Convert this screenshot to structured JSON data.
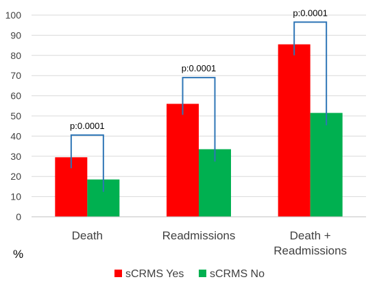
{
  "chart_data": {
    "type": "bar",
    "categories": [
      [
        "Death"
      ],
      [
        "Readmissions"
      ],
      [
        "Death +",
        "Readmissions"
      ]
    ],
    "series": [
      {
        "name": "sCRMS Yes",
        "color": "#ff0000",
        "values": [
          29.5,
          56,
          85.5
        ]
      },
      {
        "name": "sCRMS No",
        "color": "#00b050",
        "values": [
          18.5,
          33.5,
          51.5
        ]
      }
    ],
    "ylim": [
      0,
      100
    ],
    "yticks": [
      0,
      10,
      20,
      30,
      40,
      50,
      60,
      70,
      80,
      90,
      100
    ],
    "grid": true,
    "gridColor": "#d9d9d9",
    "unit_label": "%",
    "legend_position": "bottom",
    "significance": [
      {
        "label": "p:0.0001",
        "category": 0,
        "bracket_top": 40.5
      },
      {
        "label": "p:0.0001",
        "category": 1,
        "bracket_top": 69
      },
      {
        "label": "p:0.0001",
        "category": 2,
        "bracket_top": 96.5
      }
    ],
    "bracketColor": "#2e75b6"
  }
}
